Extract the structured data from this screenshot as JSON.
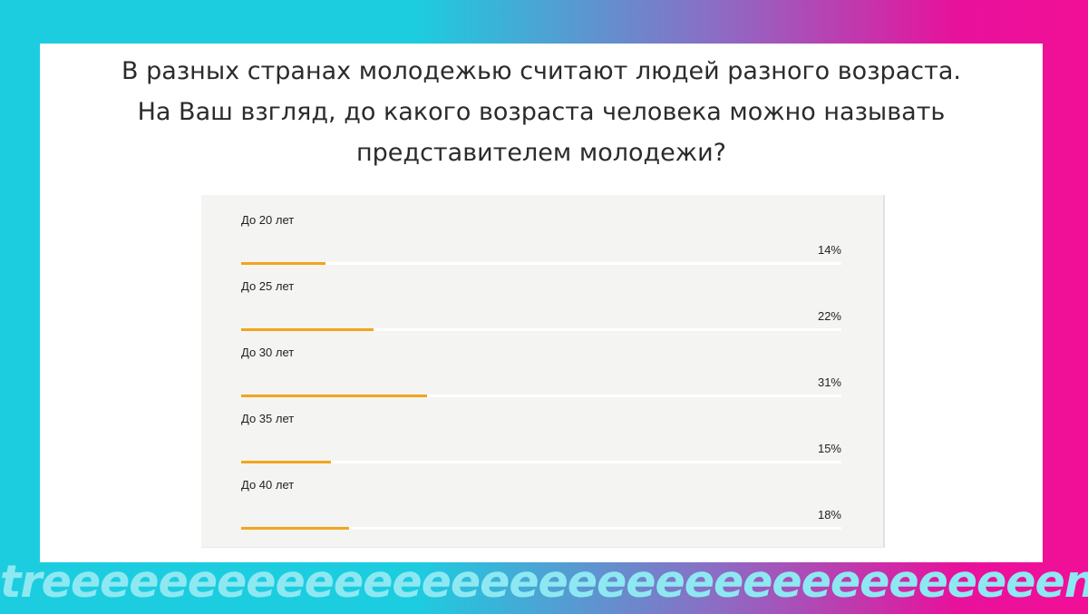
{
  "question": {
    "line1": "В разных странах молодежью считают людей разного возраста.",
    "line2": "На Ваш взгляд, до какого возраста человека можно называть",
    "line3": "представителем молодежи?"
  },
  "chart_data": {
    "type": "bar",
    "orientation": "horizontal",
    "categories": [
      "До 20 лет",
      "До 25 лет",
      "До 30 лет",
      "До 35 лет",
      "До 40 лет"
    ],
    "values": [
      14,
      22,
      31,
      15,
      18
    ],
    "value_labels": [
      "14%",
      "22%",
      "31%",
      "15%",
      "18%"
    ],
    "unit": "%",
    "xlim": [
      0,
      100
    ],
    "bar_color": "#f2a51b",
    "track_color": "#ffffff",
    "background_color": "#f4f4f2"
  },
  "watermark": {
    "text": "treeeeeeeeeeeeeeeeeeeeeeeeeeeeeeeeeeends"
  },
  "colors": {
    "gradient_left": "#1ccde0",
    "gradient_right": "#f20f97"
  }
}
